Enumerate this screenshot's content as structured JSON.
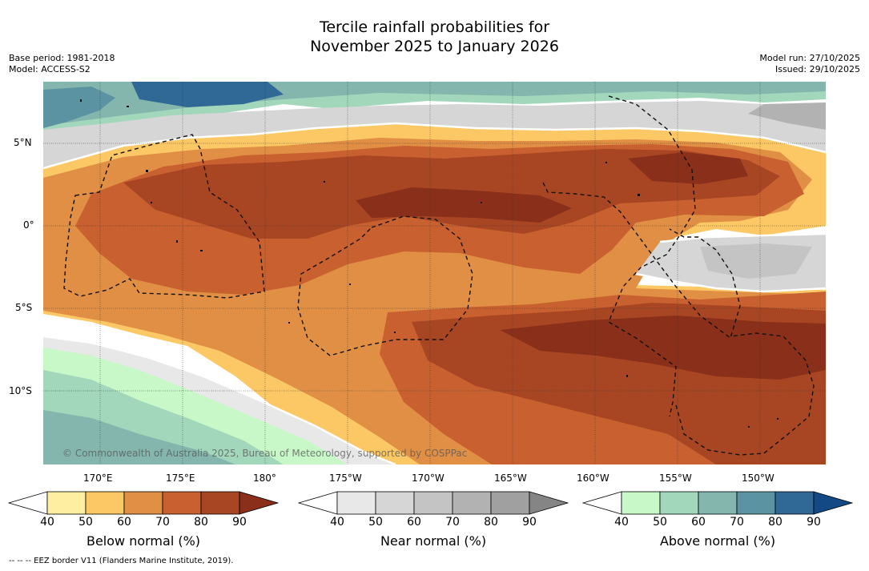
{
  "title_line1": "Tercile rainfall probabilities for",
  "title_line2": "November 2025 to January 2026",
  "base_period": "Base period: 1981-2018",
  "model": "Model: ACCESS-S2",
  "model_run": "Model run: 27/10/2025",
  "issued": "Issued: 29/10/2025",
  "copyright": "© Commonwealth of Australia 2025, Bureau of Meteorology, supported by COSPPac",
  "footer": "--  --  -- EEZ border V11 (Flanders Marine Institute, 2019).",
  "lat_labels": [
    "5°N",
    "0°",
    "5°S",
    "10°S"
  ],
  "lon_labels": [
    "170°E",
    "175°E",
    "180°",
    "175°W",
    "170°W",
    "165°W",
    "160°W",
    "155°W",
    "150°W"
  ],
  "colorbars": [
    {
      "title": "Below normal (%)",
      "ticks": [
        "40",
        "50",
        "60",
        "70",
        "80",
        "90"
      ],
      "colors": [
        "#ffffff",
        "#fdeea1",
        "#fbc865",
        "#e08f45",
        "#c9602f",
        "#a84624",
        "#8a2f1a"
      ]
    },
    {
      "title": "Near normal (%)",
      "ticks": [
        "40",
        "50",
        "60",
        "70",
        "80",
        "90"
      ],
      "colors": [
        "#ffffff",
        "#e8e8e8",
        "#d6d6d6",
        "#c4c4c4",
        "#b2b2b2",
        "#a0a0a0",
        "#858585"
      ]
    },
    {
      "title": "Above normal (%)",
      "ticks": [
        "40",
        "50",
        "60",
        "70",
        "80",
        "90"
      ],
      "colors": [
        "#ffffff",
        "#c8f8c8",
        "#a2d7bc",
        "#84b6ae",
        "#5b93a2",
        "#306896",
        "#134a86"
      ]
    }
  ]
}
